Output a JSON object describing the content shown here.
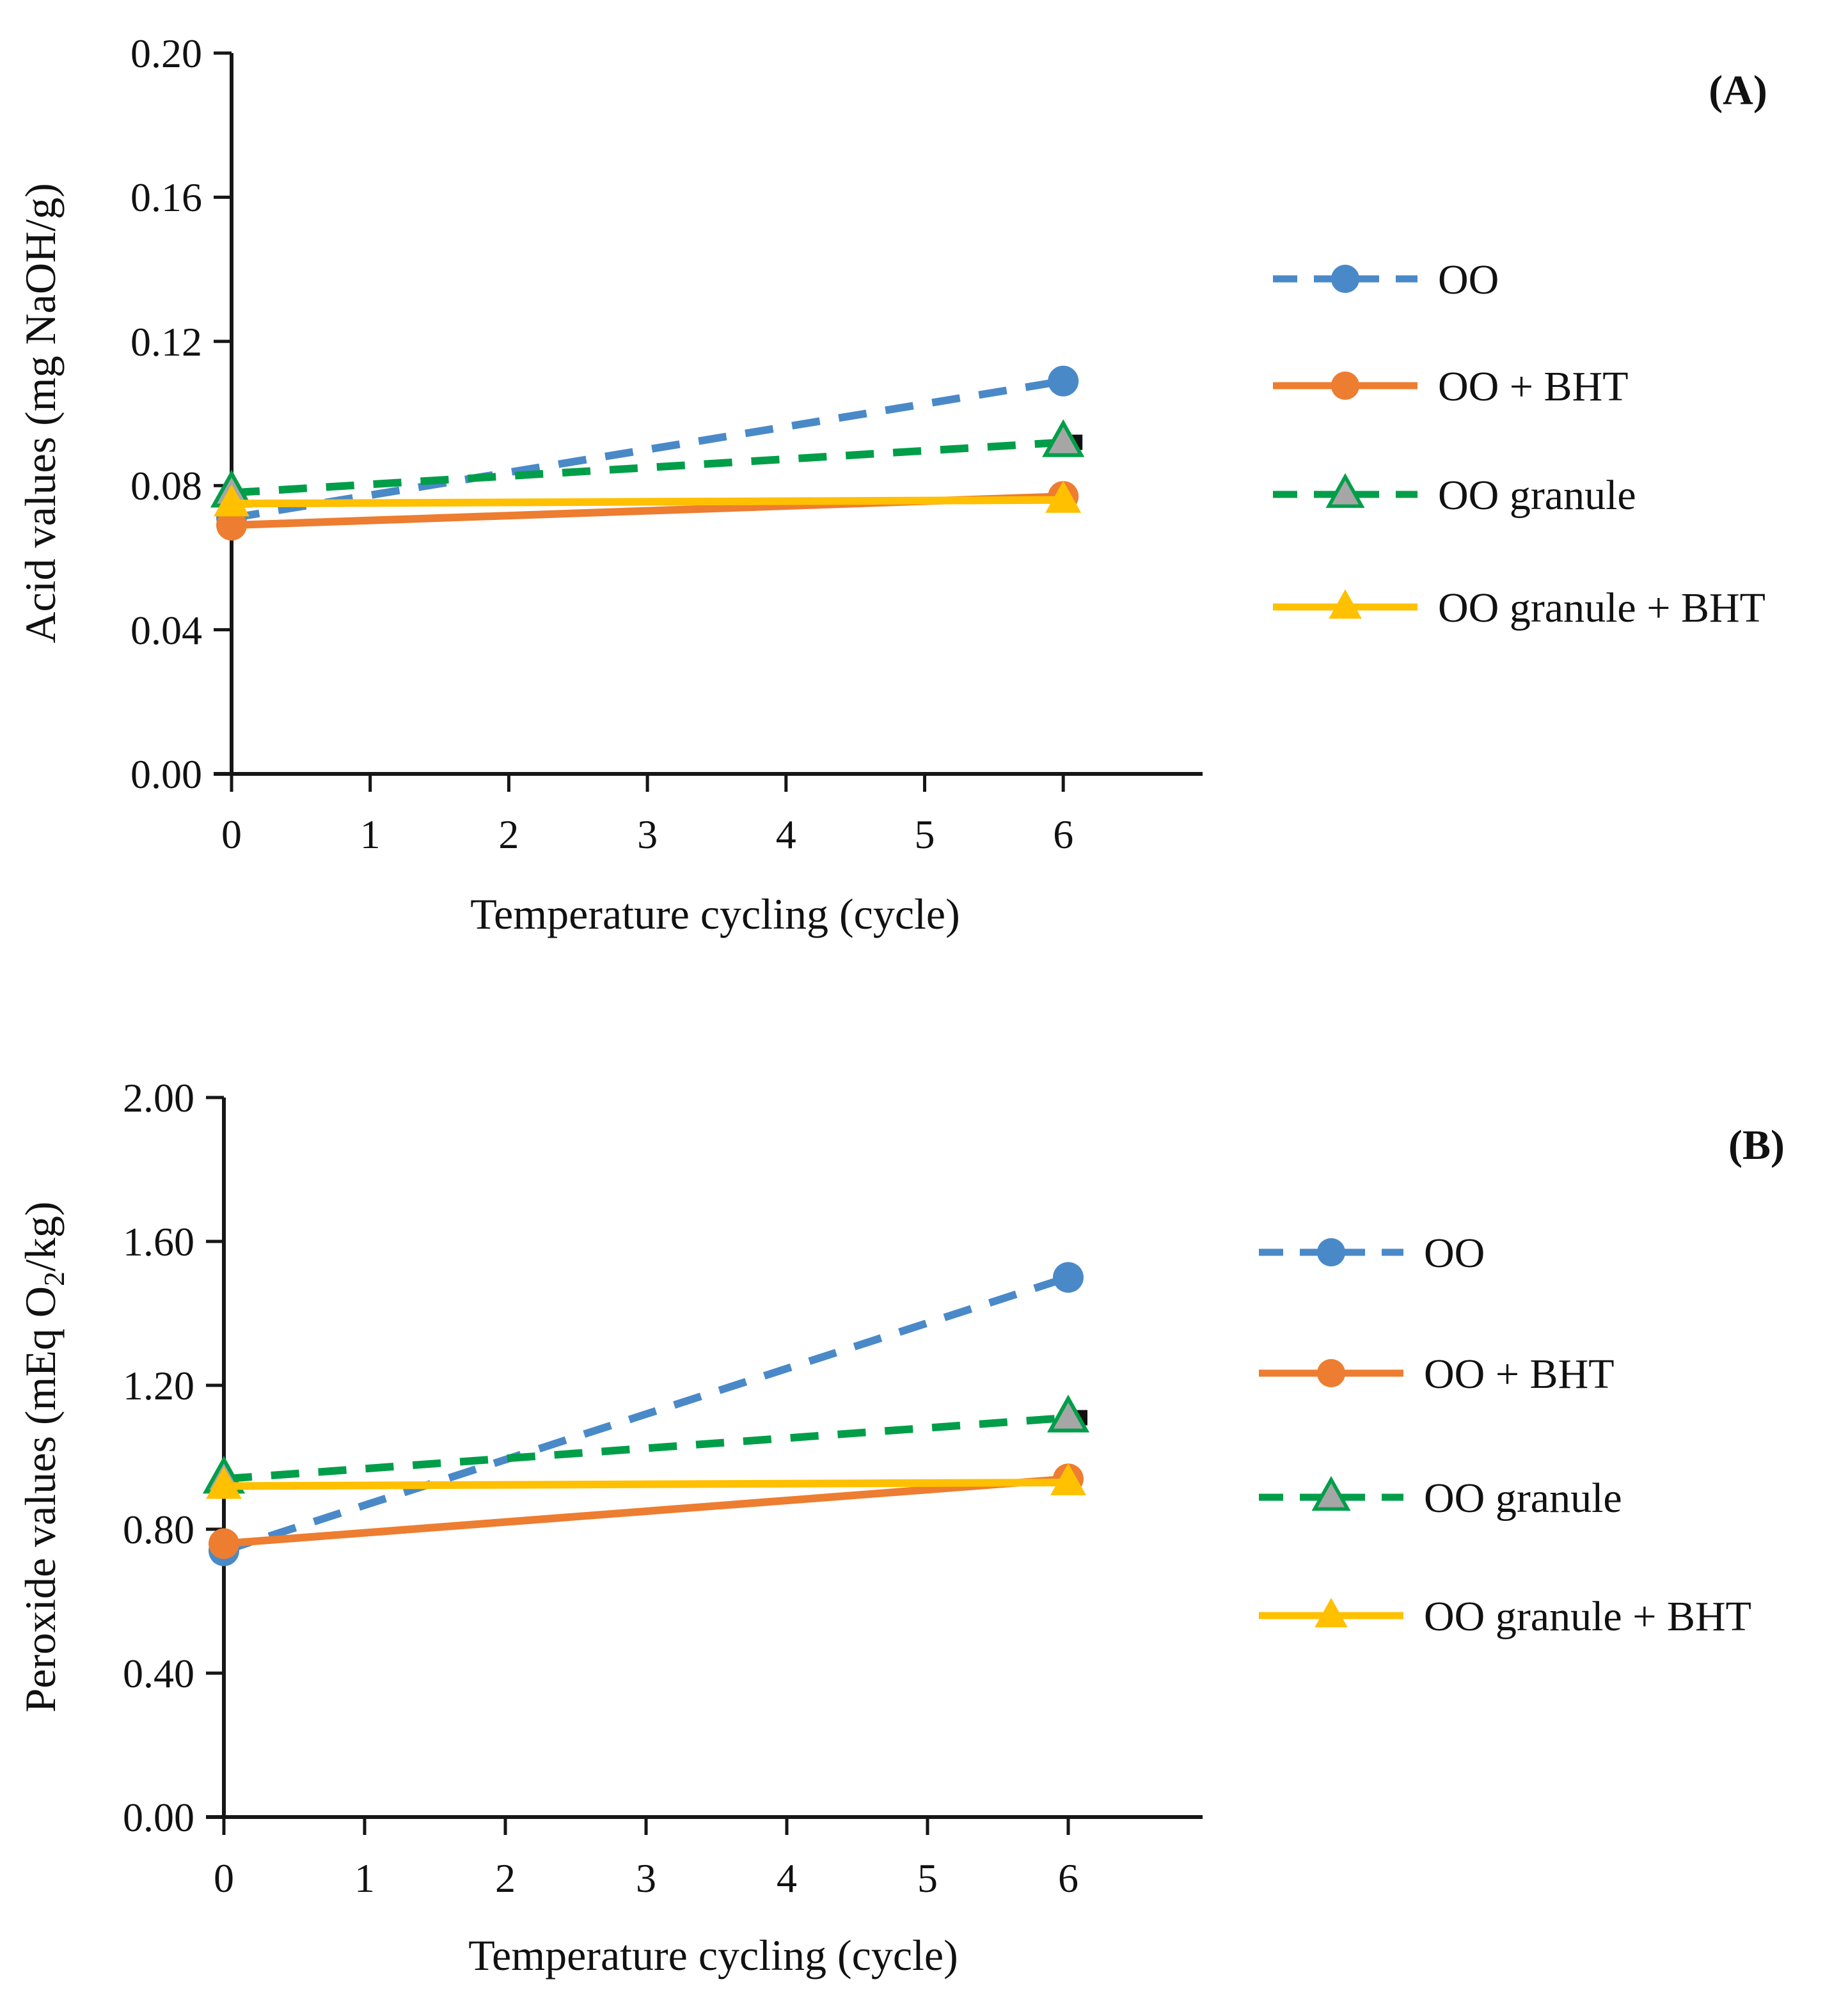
{
  "figure": {
    "panels": [
      {
        "label": "(A)"
      },
      {
        "label": "(B)"
      }
    ]
  },
  "colors": {
    "oo_blue": "#4A89C8",
    "oo_bht_orange": "#ED7D31",
    "oo_granule_green": "#009E49",
    "oo_granule_bht_yellow": "#FFC000",
    "triangle_gray_fill": "#A6A6A6",
    "axis_black": "#161616"
  },
  "chart_data": [
    {
      "type": "line",
      "panel_label": "(A)",
      "title": "",
      "xlabel": "Temperature cycling (cycle)",
      "ylabel": "Acid values (mg NaOH/g)",
      "ylabel_parts": [
        "Acid values (mg NaOH/g)"
      ],
      "xlim": [
        0,
        7
      ],
      "ylim": [
        0,
        0.2
      ],
      "grid": false,
      "legend_position": "right",
      "xticks": [
        "0",
        "1",
        "2",
        "3",
        "4",
        "5",
        "6"
      ],
      "yticks_top_to_bottom": [
        "0.20",
        "0.16",
        "0.12",
        "0.08",
        "0.04",
        "0.00"
      ],
      "x": [
        0,
        6
      ],
      "series": [
        {
          "name": "OO",
          "values": [
            0.071,
            0.109
          ],
          "color": "#4A89C8",
          "line_style": "dashed",
          "marker": "circle",
          "marker_fill": "#4A89C8"
        },
        {
          "name": "OO + BHT",
          "values": [
            0.069,
            0.077
          ],
          "color": "#ED7D31",
          "line_style": "solid",
          "marker": "circle",
          "marker_fill": "#ED7D31"
        },
        {
          "name": "OO granule",
          "values": [
            0.078,
            0.092
          ],
          "color": "#009E49",
          "line_style": "dashed",
          "marker": "triangle",
          "marker_fill": "#A6A6A6",
          "marker_stroke": "#009E49",
          "end_cap": true
        },
        {
          "name": "OO granule + BHT",
          "values": [
            0.075,
            0.076
          ],
          "color": "#FFC000",
          "line_style": "solid",
          "marker": "triangle",
          "marker_fill": "#FFC000"
        }
      ]
    },
    {
      "type": "line",
      "panel_label": "(B)",
      "title": "",
      "xlabel": "Temperature cycling (cycle)",
      "ylabel": "Peroxide values (mEq O2/kg)",
      "ylabel_parts": [
        "Peroxide values (mEq O",
        "2",
        "/kg)"
      ],
      "xlim": [
        0,
        7
      ],
      "ylim": [
        0,
        2.0
      ],
      "grid": false,
      "legend_position": "right",
      "xticks": [
        "0",
        "1",
        "2",
        "3",
        "4",
        "5",
        "6"
      ],
      "yticks_top_to_bottom": [
        "2.00",
        "1.60",
        "1.20",
        "0.80",
        "0.40",
        "0.00"
      ],
      "x": [
        0,
        6
      ],
      "series": [
        {
          "name": "OO",
          "values": [
            0.74,
            1.5
          ],
          "color": "#4A89C8",
          "line_style": "dashed",
          "marker": "circle",
          "marker_fill": "#4A89C8"
        },
        {
          "name": "OO + BHT",
          "values": [
            0.76,
            0.94
          ],
          "color": "#ED7D31",
          "line_style": "solid",
          "marker": "circle",
          "marker_fill": "#ED7D31"
        },
        {
          "name": "OO granule",
          "values": [
            0.94,
            1.11
          ],
          "color": "#009E49",
          "line_style": "dashed",
          "marker": "triangle",
          "marker_fill": "#A6A6A6",
          "marker_stroke": "#009E49",
          "end_cap": true
        },
        {
          "name": "OO granule + BHT",
          "values": [
            0.92,
            0.93
          ],
          "color": "#FFC000",
          "line_style": "solid",
          "marker": "triangle",
          "marker_fill": "#FFC000"
        }
      ]
    }
  ]
}
